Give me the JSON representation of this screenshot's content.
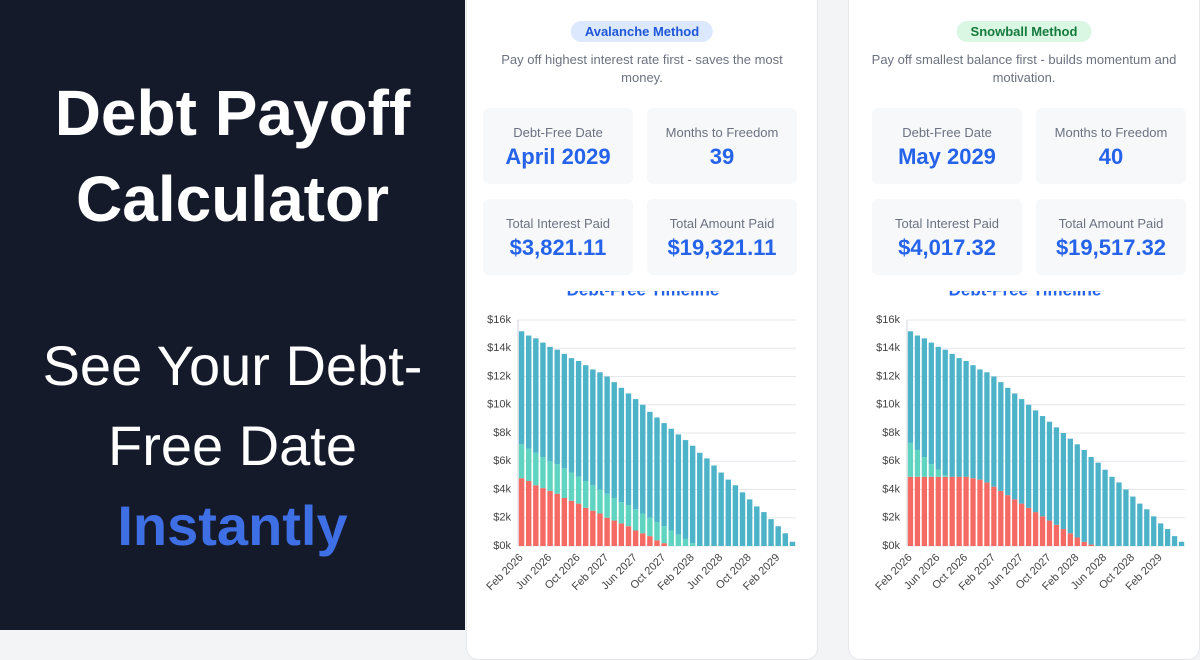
{
  "hero": {
    "title": "Debt Payoff Calculator",
    "tagline": "See Your Debt-Free Date",
    "tagline_highlight": "Instantly"
  },
  "cards": [
    {
      "badge": "Avalanche Method",
      "description": "Pay off highest interest rate first - saves the most money.",
      "stats": [
        {
          "label": "Debt-Free Date",
          "value": "April 2029"
        },
        {
          "label": "Months to Freedom",
          "value": "39"
        },
        {
          "label": "Total Interest Paid",
          "value": "$3,821.11"
        },
        {
          "label": "Total Amount Paid",
          "value": "$19,321.11"
        }
      ]
    },
    {
      "badge": "Snowball Method",
      "description": "Pay off smallest balance first - builds momentum and motivation.",
      "stats": [
        {
          "label": "Debt-Free Date",
          "value": "May 2029"
        },
        {
          "label": "Months to Freedom",
          "value": "40"
        },
        {
          "label": "Total Interest Paid",
          "value": "$4,017.32"
        },
        {
          "label": "Total Amount Paid",
          "value": "$19,517.32"
        }
      ]
    }
  ],
  "chart_data": [
    {
      "type": "stacked-bar",
      "title": "Debt-Free Timeline",
      "grid": true,
      "categories": [
        "Feb 2026",
        null,
        null,
        null,
        "Jun 2026",
        null,
        null,
        null,
        "Oct 2026",
        null,
        null,
        null,
        "Feb 2027",
        null,
        null,
        null,
        "Jun 2027",
        null,
        null,
        null,
        "Oct 2027",
        null,
        null,
        null,
        "Feb 2028",
        null,
        null,
        null,
        "Jun 2028",
        null,
        null,
        null,
        "Oct 2028",
        null,
        null,
        null,
        "Feb 2029",
        null,
        null
      ],
      "ylim": [
        0,
        16000
      ],
      "yticks": [
        {
          "value": 0,
          "label": "$0k"
        },
        {
          "value": 2000,
          "label": "$2k"
        },
        {
          "value": 4000,
          "label": "$4k"
        },
        {
          "value": 6000,
          "label": "$6k"
        },
        {
          "value": 8000,
          "label": "$8k"
        },
        {
          "value": 10000,
          "label": "$10k"
        },
        {
          "value": 12000,
          "label": "$12k"
        },
        {
          "value": 14000,
          "label": "$14k"
        },
        {
          "value": 16000,
          "label": "$16k"
        }
      ],
      "series": [
        {
          "color": "#f56a62",
          "values": [
            4800,
            4600,
            4300,
            4100,
            3900,
            3700,
            3400,
            3200,
            3000,
            2700,
            2500,
            2300,
            2000,
            1800,
            1600,
            1400,
            1100,
            900,
            700,
            400,
            200,
            0,
            0,
            0,
            0,
            0,
            0,
            0,
            0,
            0,
            0,
            0,
            0,
            0,
            0,
            0,
            0,
            0,
            0
          ]
        },
        {
          "color": "#5fd4c1",
          "values": [
            2400,
            2300,
            2300,
            2200,
            2100,
            2100,
            2100,
            2000,
            1900,
            1900,
            1800,
            1700,
            1700,
            1600,
            1500,
            1500,
            1500,
            1400,
            1300,
            1300,
            1200,
            1100,
            800,
            500,
            200,
            0,
            0,
            0,
            0,
            0,
            0,
            0,
            0,
            0,
            0,
            0,
            0,
            0,
            0
          ]
        },
        {
          "color": "#4db3c9",
          "values": [
            8000,
            8000,
            8100,
            8100,
            8100,
            8100,
            8100,
            8100,
            8200,
            8200,
            8200,
            8300,
            8300,
            8200,
            8100,
            7900,
            7800,
            7700,
            7500,
            7400,
            7300,
            7200,
            7100,
            7000,
            6900,
            6600,
            6200,
            5700,
            5200,
            4700,
            4300,
            3800,
            3300,
            2800,
            2400,
            1900,
            1400,
            900,
            300
          ]
        }
      ]
    },
    {
      "type": "stacked-bar",
      "title": "Debt-Free Timeline",
      "grid": true,
      "categories": [
        "Feb 2026",
        null,
        null,
        null,
        "Jun 2026",
        null,
        null,
        null,
        "Oct 2026",
        null,
        null,
        null,
        "Feb 2027",
        null,
        null,
        null,
        "Jun 2027",
        null,
        null,
        null,
        "Oct 2027",
        null,
        null,
        null,
        "Feb 2028",
        null,
        null,
        null,
        "Jun 2028",
        null,
        null,
        null,
        "Oct 2028",
        null,
        null,
        null,
        "Feb 2029",
        null,
        null,
        null
      ],
      "ylim": [
        0,
        16000
      ],
      "yticks": [
        {
          "value": 0,
          "label": "$0k"
        },
        {
          "value": 2000,
          "label": "$2k"
        },
        {
          "value": 4000,
          "label": "$4k"
        },
        {
          "value": 6000,
          "label": "$6k"
        },
        {
          "value": 8000,
          "label": "$8k"
        },
        {
          "value": 10000,
          "label": "$10k"
        },
        {
          "value": 12000,
          "label": "$12k"
        },
        {
          "value": 14000,
          "label": "$14k"
        },
        {
          "value": 16000,
          "label": "$16k"
        }
      ],
      "series": [
        {
          "color": "#f56a62",
          "values": [
            4900,
            4900,
            4900,
            4900,
            4900,
            4900,
            4900,
            4900,
            4900,
            4800,
            4700,
            4500,
            4200,
            3900,
            3600,
            3300,
            3000,
            2700,
            2400,
            2100,
            1800,
            1500,
            1200,
            900,
            600,
            300,
            100,
            0,
            0,
            0,
            0,
            0,
            0,
            0,
            0,
            0,
            0,
            0,
            0,
            0
          ]
        },
        {
          "color": "#5fd4c1",
          "values": [
            2400,
            1900,
            1400,
            900,
            500,
            100,
            0,
            0,
            0,
            0,
            0,
            0,
            0,
            0,
            0,
            0,
            0,
            0,
            0,
            0,
            0,
            0,
            0,
            0,
            0,
            0,
            0,
            0,
            0,
            0,
            0,
            0,
            0,
            0,
            0,
            0,
            0,
            0,
            0,
            0
          ]
        },
        {
          "color": "#4db3c9",
          "values": [
            7900,
            8100,
            8400,
            8600,
            8700,
            8900,
            8700,
            8400,
            8200,
            8000,
            7800,
            7800,
            7800,
            7700,
            7600,
            7500,
            7400,
            7300,
            7200,
            7100,
            7000,
            6900,
            6800,
            6700,
            6600,
            6500,
            6200,
            5900,
            5400,
            4900,
            4500,
            4000,
            3500,
            3000,
            2600,
            2100,
            1600,
            1200,
            700,
            300
          ]
        }
      ]
    }
  ]
}
